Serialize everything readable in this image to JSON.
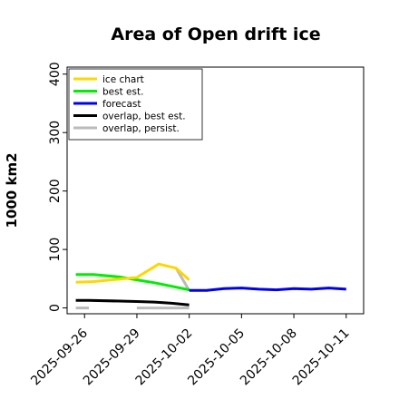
{
  "chart_data": {
    "type": "line",
    "title": "Area of Open drift ice",
    "ylabel": "1000 km2",
    "xlabel": "",
    "ylim": [
      -10,
      412
    ],
    "yticks": [
      0,
      100,
      200,
      300,
      400
    ],
    "xlim": [
      "2025-09-25",
      "2025-10-12"
    ],
    "xticks": [
      {
        "date": "2025-09-26",
        "label": "2025-09-26",
        "color": "#000000"
      },
      {
        "date": "2025-09-29",
        "label": "2025-09-29",
        "color": "#000000"
      },
      {
        "date": "2025-10-02",
        "label": "2025-10-02",
        "color": "#008000"
      },
      {
        "date": "2025-10-05",
        "label": "2025-10-05",
        "color": "#000000"
      },
      {
        "date": "2025-10-08",
        "label": "2025-10-08",
        "color": "#000000"
      },
      {
        "date": "2025-10-11",
        "label": "2025-10-11",
        "color": "#000000"
      }
    ],
    "legend_position": "top-left",
    "series": [
      {
        "name": "ice chart",
        "color": "#FFD700",
        "width": 3,
        "x": [
          "2025-09-25T12:00",
          "2025-09-26T12:00",
          "2025-09-29",
          "2025-09-30T06:00",
          "2025-10-01T06:00",
          "2025-10-02"
        ],
        "y": [
          44,
          45,
          52,
          75,
          68,
          48
        ]
      },
      {
        "name": "best est.",
        "color": "#00EE00",
        "width": 3,
        "x": [
          "2025-09-25T12:00",
          "2025-09-26T12:00",
          "2025-09-28",
          "2025-09-29",
          "2025-09-30",
          "2025-10-01",
          "2025-10-02"
        ],
        "y": [
          57,
          57,
          53,
          48,
          43,
          37,
          31
        ]
      },
      {
        "name": "forecast",
        "color": "#0000EE",
        "width": 3,
        "x": [
          "2025-10-02",
          "2025-10-03",
          "2025-10-04",
          "2025-10-05",
          "2025-10-06",
          "2025-10-07",
          "2025-10-08",
          "2025-10-09",
          "2025-10-10",
          "2025-10-11"
        ],
        "y": [
          30,
          30,
          33,
          34,
          32,
          31,
          33,
          32,
          34,
          32
        ]
      },
      {
        "name": "overlap, best est.",
        "color": "#000000",
        "width": 3,
        "x": [
          "2025-09-25T12:00",
          "2025-09-26T06:00",
          "2025-09-29",
          "2025-09-30",
          "2025-10-01",
          "2025-10-02"
        ],
        "y": [
          13,
          13,
          11,
          10,
          8,
          5
        ]
      },
      {
        "name": "overlap, persist.",
        "color": "#BBBBBB",
        "width": 3,
        "segments": [
          {
            "x": [
              "2025-09-25T12:00",
              "2025-09-26T06:00"
            ],
            "y": [
              0,
              0
            ]
          },
          {
            "x": [
              "2025-09-29",
              "2025-10-02"
            ],
            "y": [
              0,
              0
            ]
          },
          {
            "x": [
              "2025-10-01T06:00",
              "2025-10-02"
            ],
            "y": [
              68,
              30
            ]
          }
        ]
      }
    ]
  }
}
